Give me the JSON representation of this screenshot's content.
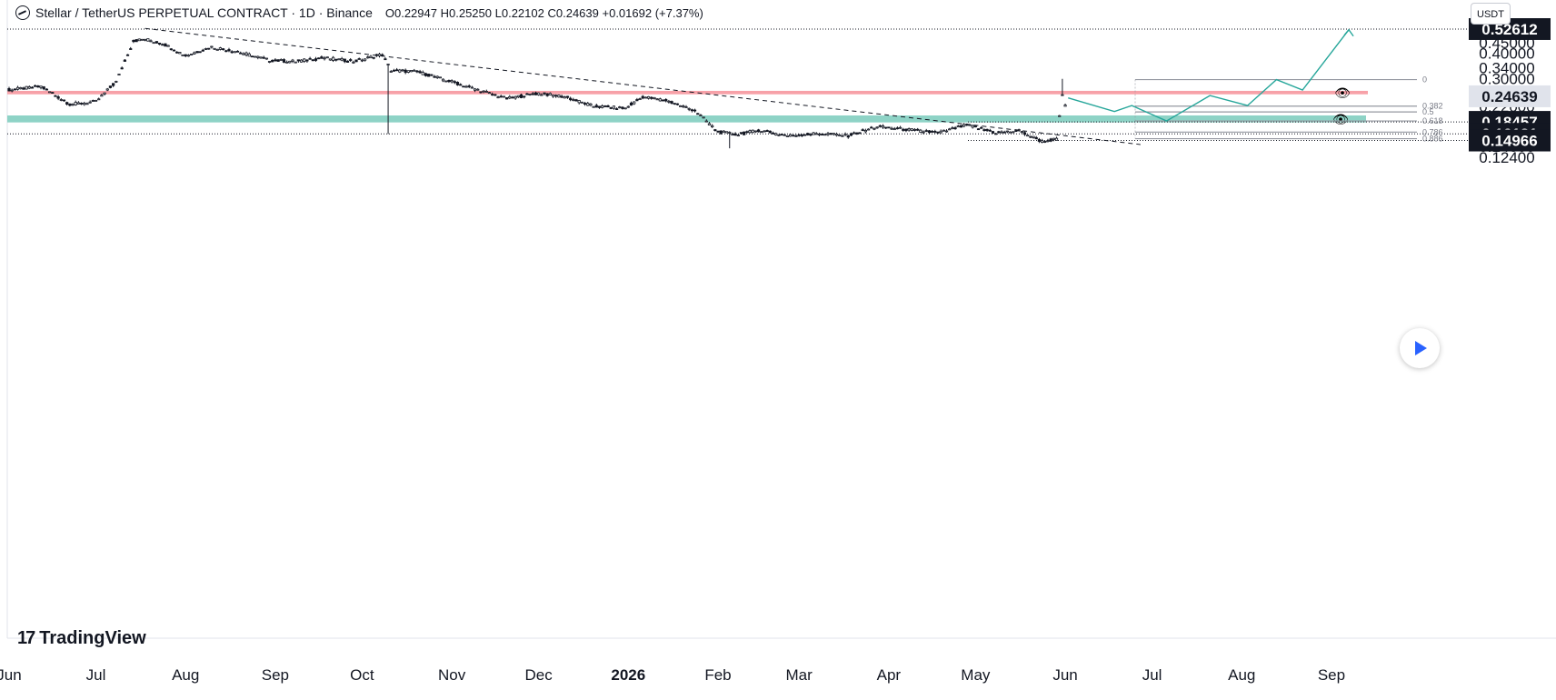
{
  "header": {
    "symbol": "Stellar / TetherUS PERPETUAL CONTRACT · 1D · Binance",
    "o_label": "O",
    "o": "0.22947",
    "h_label": "H",
    "h": "0.25250",
    "l_label": "L",
    "l": "0.22102",
    "c_label": "C",
    "c": "0.24639",
    "change": "+0.01692 (+7.37%)"
  },
  "currency_button": "USDT",
  "brand": "TradingView",
  "colors": {
    "up_candle": "#ffffff",
    "down_candle": "#131722",
    "resistance_zone": "#f7a1a8",
    "support_zone": "#8ed3c6",
    "projection": "#26a69a",
    "fib": "#9598a1"
  },
  "chart_data": {
    "type": "candlestick",
    "y_scale": "log",
    "ylim": [
      0.115,
      0.55
    ],
    "y_ticks": [
      "0.45000",
      "0.40000",
      "0.34000",
      "0.30000",
      "0.26000",
      "0.22000",
      "0.19000",
      "0.14000",
      "0.12400"
    ],
    "x_ticks": [
      "Jun",
      "Jul",
      "Aug",
      "Sep",
      "Oct",
      "Nov",
      "Dec",
      "2026",
      "Feb",
      "Mar",
      "Apr",
      "May",
      "Jun",
      "Jul",
      "Aug",
      "Sep"
    ],
    "price_labels": [
      {
        "text": "0.52612",
        "value": 0.52612,
        "style": "dark"
      },
      {
        "text": "0.24639",
        "value": 0.24639,
        "style": "current"
      },
      {
        "text": "0.18457",
        "value": 0.18457,
        "style": "dark"
      },
      {
        "text": "0.16131",
        "value": 0.16131,
        "style": "dark"
      },
      {
        "text": "0.14966",
        "value": 0.14966,
        "style": "dark"
      }
    ],
    "zones": [
      {
        "name": "resistance",
        "low": 0.252,
        "high": 0.262
      },
      {
        "name": "support",
        "low": 0.1835,
        "high": 0.1985
      }
    ],
    "fib_levels": [
      {
        "label": "0",
        "value": 0.2975
      },
      {
        "label": "0.382",
        "value": 0.2205
      },
      {
        "label": "0.5",
        "value": 0.2065
      },
      {
        "label": "0.618",
        "value": 0.1865
      },
      {
        "label": "0.786",
        "value": 0.1645
      },
      {
        "label": "0.886",
        "value": 0.1527
      }
    ],
    "horizontal_lines": [
      0.52612,
      0.16131,
      0.18457,
      0.14966
    ],
    "trendline": [
      {
        "date": "2025-07-18",
        "value": 0.53
      },
      {
        "date": "2026-06-27",
        "value": 0.143
      }
    ],
    "projection_path": [
      {
        "date": "2026-06-02",
        "value": 0.242
      },
      {
        "date": "2026-06-18",
        "value": 0.2075
      },
      {
        "date": "2026-06-24",
        "value": 0.222
      },
      {
        "date": "2026-07-06",
        "value": 0.1865
      },
      {
        "date": "2026-07-21",
        "value": 0.2485
      },
      {
        "date": "2026-08-03",
        "value": 0.222
      },
      {
        "date": "2026-08-13",
        "value": 0.2975
      },
      {
        "date": "2026-08-22",
        "value": 0.2645
      },
      {
        "date": "2026-09-07",
        "value": 0.522
      }
    ],
    "ohlc_series": [
      {
        "date": "2025-06-01",
        "value": 0.265
      },
      {
        "date": "2025-06-12",
        "value": 0.275
      },
      {
        "date": "2025-06-22",
        "value": 0.225
      },
      {
        "date": "2025-07-01",
        "value": 0.232
      },
      {
        "date": "2025-07-08",
        "value": 0.29
      },
      {
        "date": "2025-07-14",
        "value": 0.46
      },
      {
        "date": "2025-07-18",
        "value": 0.47
      },
      {
        "date": "2025-07-25",
        "value": 0.44
      },
      {
        "date": "2025-08-01",
        "value": 0.39
      },
      {
        "date": "2025-08-10",
        "value": 0.43
      },
      {
        "date": "2025-08-18",
        "value": 0.41
      },
      {
        "date": "2025-08-30",
        "value": 0.37
      },
      {
        "date": "2025-09-08",
        "value": 0.365
      },
      {
        "date": "2025-09-18",
        "value": 0.38
      },
      {
        "date": "2025-09-28",
        "value": 0.365
      },
      {
        "date": "2025-10-08",
        "value": 0.395
      },
      {
        "date": "2025-10-11",
        "value": 0.33
      },
      {
        "date": "2025-10-20",
        "value": 0.325
      },
      {
        "date": "2025-11-01",
        "value": 0.29
      },
      {
        "date": "2025-11-10",
        "value": 0.265
      },
      {
        "date": "2025-11-20",
        "value": 0.24
      },
      {
        "date": "2025-12-01",
        "value": 0.255
      },
      {
        "date": "2025-12-10",
        "value": 0.245
      },
      {
        "date": "2025-12-20",
        "value": 0.22
      },
      {
        "date": "2025-12-31",
        "value": 0.215
      },
      {
        "date": "2026-01-06",
        "value": 0.245
      },
      {
        "date": "2026-01-14",
        "value": 0.235
      },
      {
        "date": "2026-01-24",
        "value": 0.21
      },
      {
        "date": "2026-02-01",
        "value": 0.165
      },
      {
        "date": "2026-02-08",
        "value": 0.16
      },
      {
        "date": "2026-02-15",
        "value": 0.168
      },
      {
        "date": "2026-02-25",
        "value": 0.158
      },
      {
        "date": "2026-03-08",
        "value": 0.162
      },
      {
        "date": "2026-03-18",
        "value": 0.158
      },
      {
        "date": "2026-03-28",
        "value": 0.175
      },
      {
        "date": "2026-04-06",
        "value": 0.17
      },
      {
        "date": "2026-04-18",
        "value": 0.163
      },
      {
        "date": "2026-04-28",
        "value": 0.178
      },
      {
        "date": "2026-05-08",
        "value": 0.163
      },
      {
        "date": "2026-05-16",
        "value": 0.167
      },
      {
        "date": "2026-05-24",
        "value": 0.148
      },
      {
        "date": "2026-05-29",
        "value": 0.152
      },
      {
        "date": "2026-05-30",
        "value": 0.195
      },
      {
        "date": "2026-05-31",
        "value": 0.252
      },
      {
        "date": "2026-06-01",
        "value": 0.22
      },
      {
        "date": "2026-06-02",
        "value": 0.246
      }
    ]
  }
}
